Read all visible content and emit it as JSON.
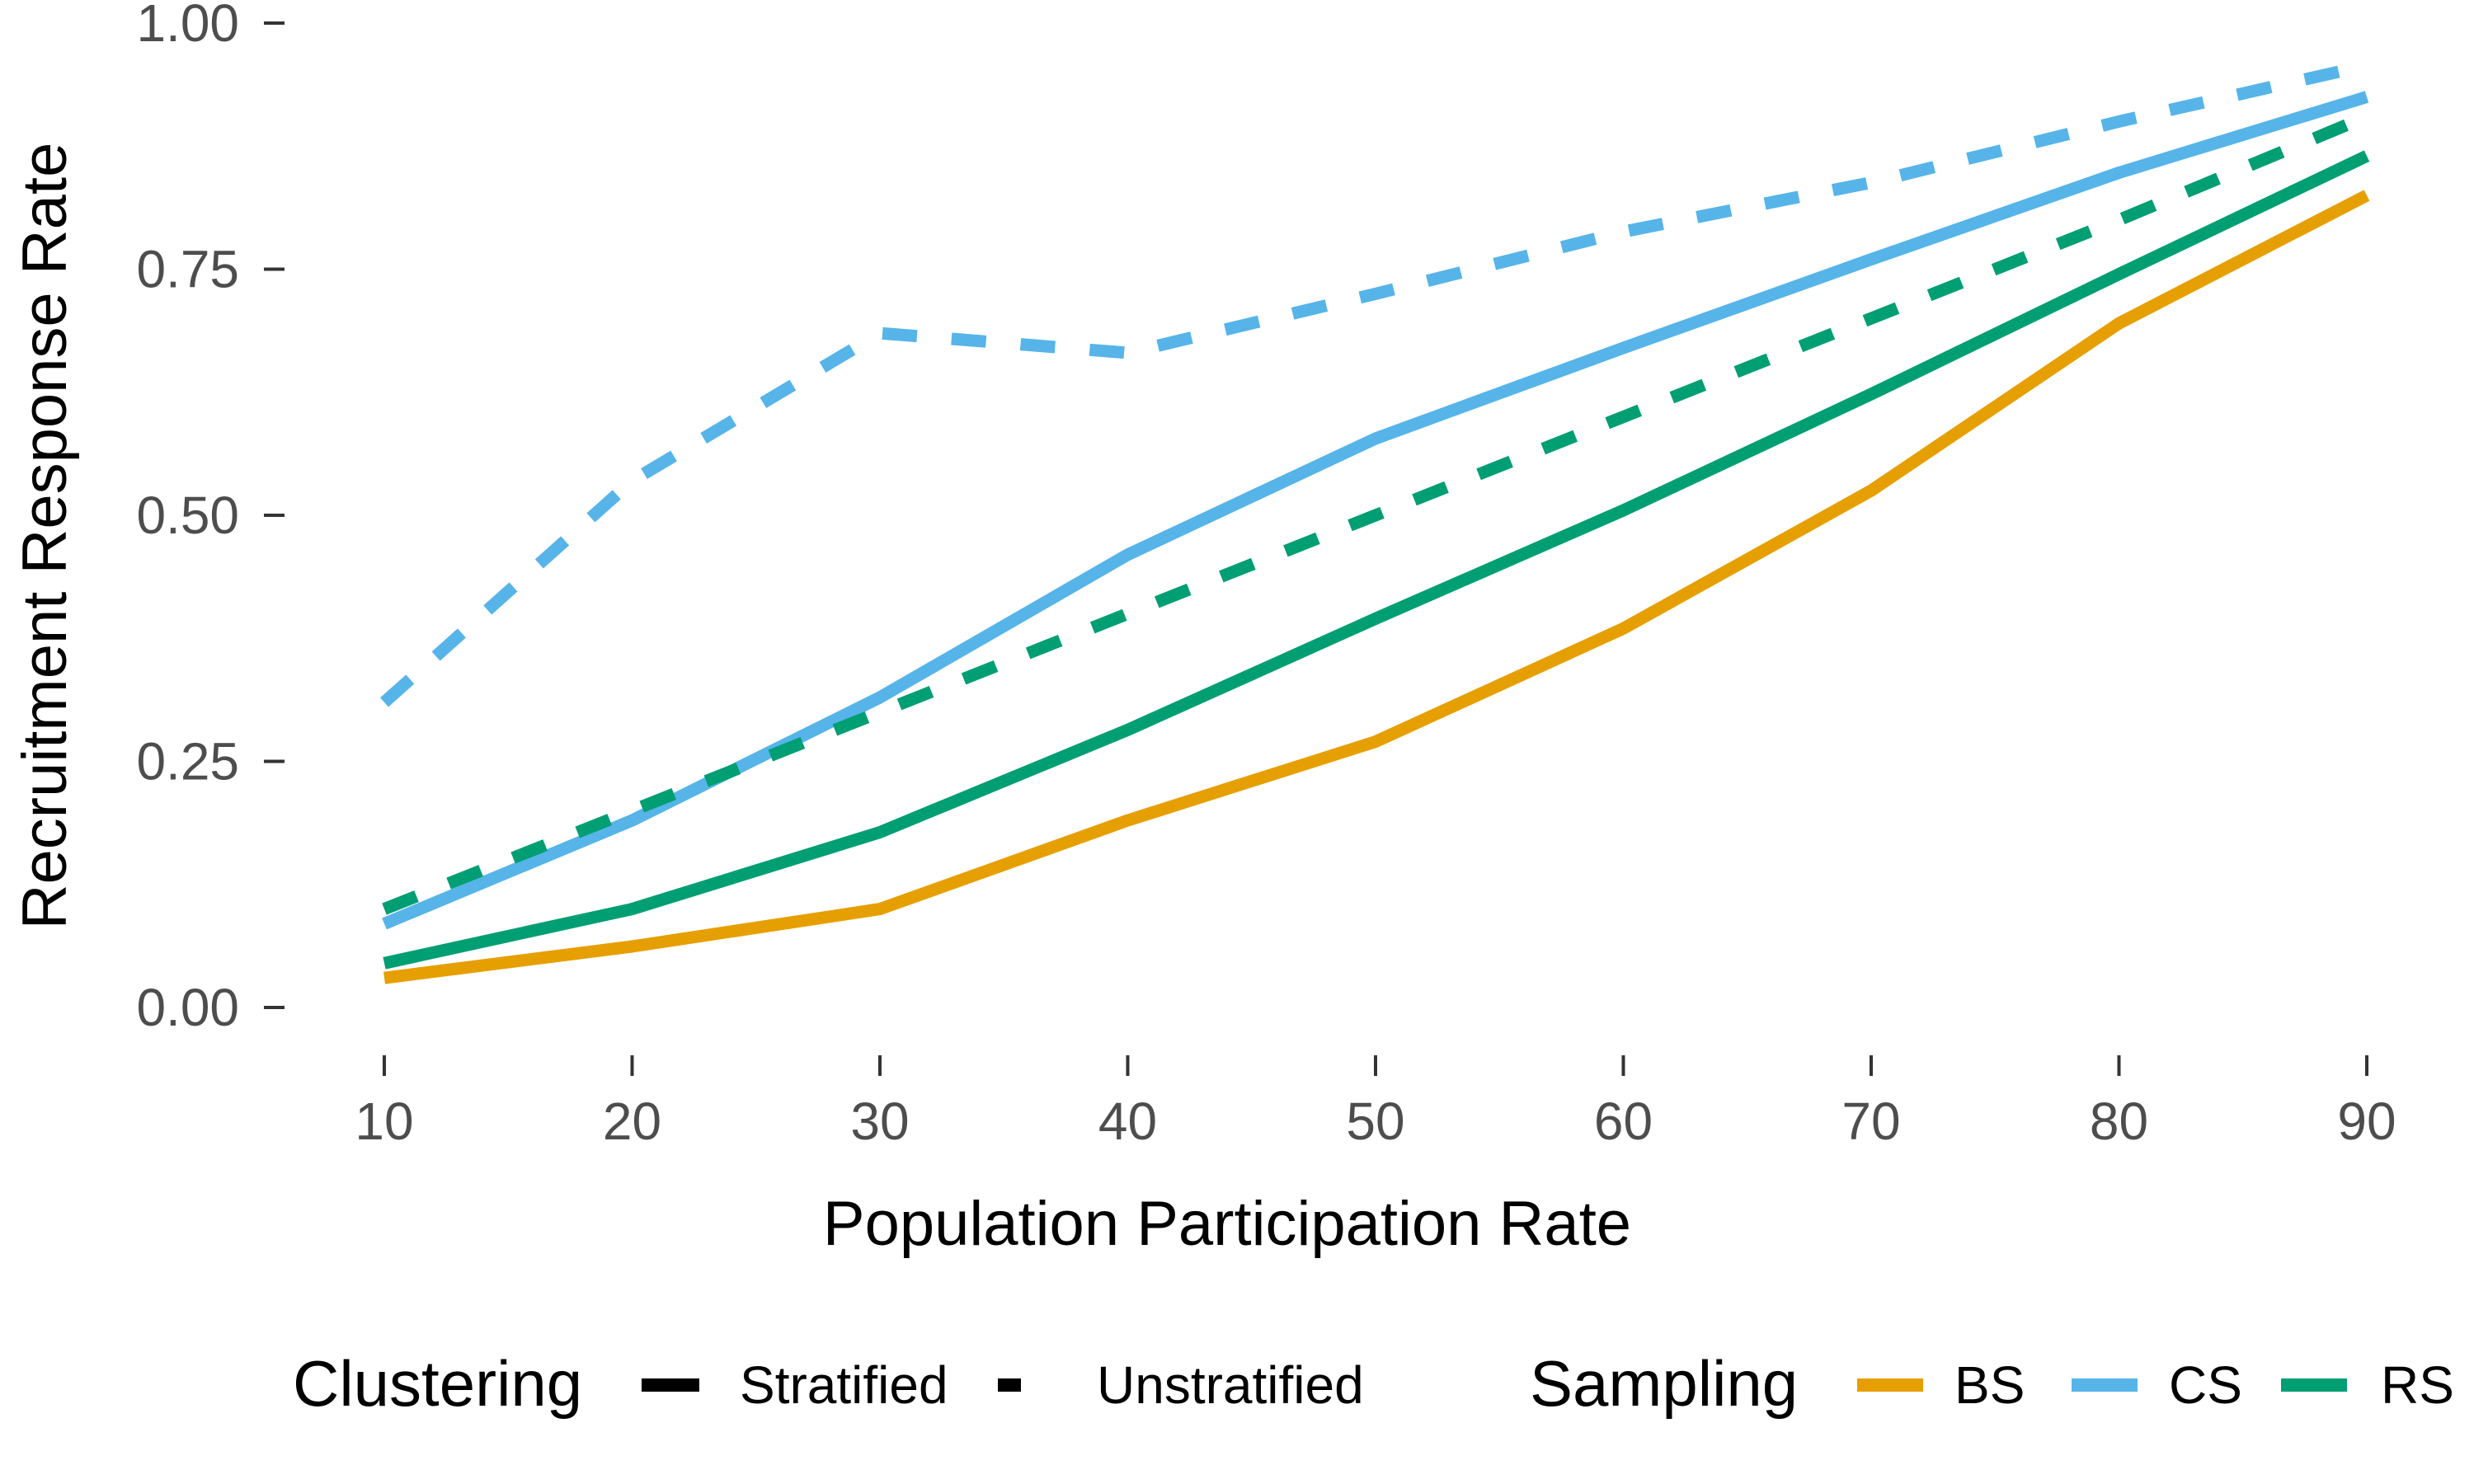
{
  "chart_data": {
    "type": "line",
    "xlabel": "Population Participation Rate",
    "ylabel": "Recruitment Response Rate",
    "x": [
      10,
      20,
      30,
      40,
      50,
      60,
      70,
      80,
      90
    ],
    "xlim": [
      10,
      90
    ],
    "ylim": [
      0,
      1
    ],
    "x_ticks": [
      "10",
      "20",
      "30",
      "40",
      "50",
      "60",
      "70",
      "80",
      "90"
    ],
    "y_ticks": [
      {
        "value": 0,
        "label": "0.00"
      },
      {
        "value": 0.25,
        "label": "0.25"
      },
      {
        "value": 0.5,
        "label": "0.50"
      },
      {
        "value": 0.75,
        "label": "0.75"
      },
      {
        "value": 1,
        "label": "1.00"
      }
    ],
    "grid": false,
    "legend_position": "bottom",
    "legend": {
      "clustering": {
        "title": "Clustering",
        "items": [
          {
            "label": "Stratified",
            "linetype": "solid"
          },
          {
            "label": "Unstratified",
            "linetype": "dashed"
          }
        ]
      },
      "sampling": {
        "title": "Sampling",
        "items": [
          {
            "label": "BS",
            "color": "#E69F00"
          },
          {
            "label": "CS",
            "color": "#56B4E9"
          },
          {
            "label": "RS",
            "color": "#009E73"
          }
        ]
      }
    },
    "series": [
      {
        "sampling": "BS",
        "clustering": "Stratified",
        "color": "#E69F00",
        "linetype": "solid",
        "values": [
          0.03,
          0.062,
          0.1,
          0.19,
          0.27,
          0.385,
          0.525,
          0.695,
          0.825
        ]
      },
      {
        "sampling": "CS",
        "clustering": "Stratified",
        "color": "#56B4E9",
        "linetype": "solid",
        "values": [
          0.085,
          0.19,
          0.315,
          0.46,
          0.578,
          0.67,
          0.76,
          0.848,
          0.925
        ]
      },
      {
        "sampling": "RS",
        "clustering": "Stratified",
        "color": "#009E73",
        "linetype": "solid",
        "values": [
          0.045,
          0.1,
          0.178,
          0.282,
          0.395,
          0.505,
          0.623,
          0.745,
          0.865
        ]
      },
      {
        "sampling": "CS",
        "clustering": "Unstratified",
        "color": "#56B4E9",
        "linetype": "dashed",
        "values": [
          0.31,
          0.535,
          0.685,
          0.665,
          0.725,
          0.788,
          0.838,
          0.9,
          0.957
        ]
      },
      {
        "sampling": "RS",
        "clustering": "Unstratified",
        "color": "#009E73",
        "linetype": "dashed",
        "values": [
          0.1,
          0.2,
          0.3,
          0.4,
          0.5,
          0.6,
          0.7,
          0.8,
          0.905
        ]
      }
    ]
  }
}
